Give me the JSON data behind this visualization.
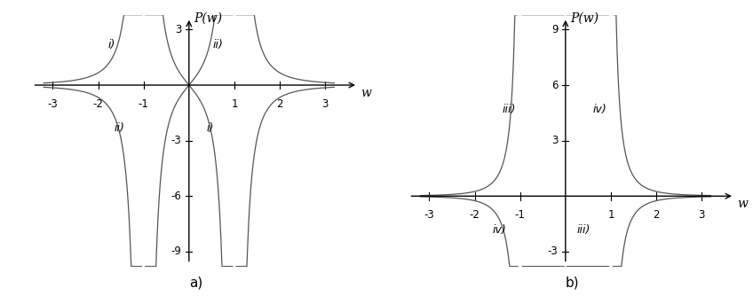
{
  "title_a": "a)",
  "title_b": "b)",
  "ylabel_a": "P(w)",
  "ylabel_b": "P(w)",
  "xlabel": "w",
  "xlim_a": [
    -3.5,
    3.8
  ],
  "ylim_a": [
    -9.8,
    3.8
  ],
  "xlim_b": [
    -3.5,
    3.8
  ],
  "ylim_b": [
    -3.8,
    9.8
  ],
  "yticks_a": [
    -9,
    -6,
    -3,
    3
  ],
  "yticks_b": [
    3,
    6,
    9,
    -3
  ],
  "xticks": [
    -3,
    -2,
    -1,
    1,
    2,
    3
  ],
  "curve_color": "#555555",
  "background_color": "#ffffff",
  "label_fontsize": 9,
  "axis_label_fontsize": 10,
  "tick_fontsize": 8.5
}
